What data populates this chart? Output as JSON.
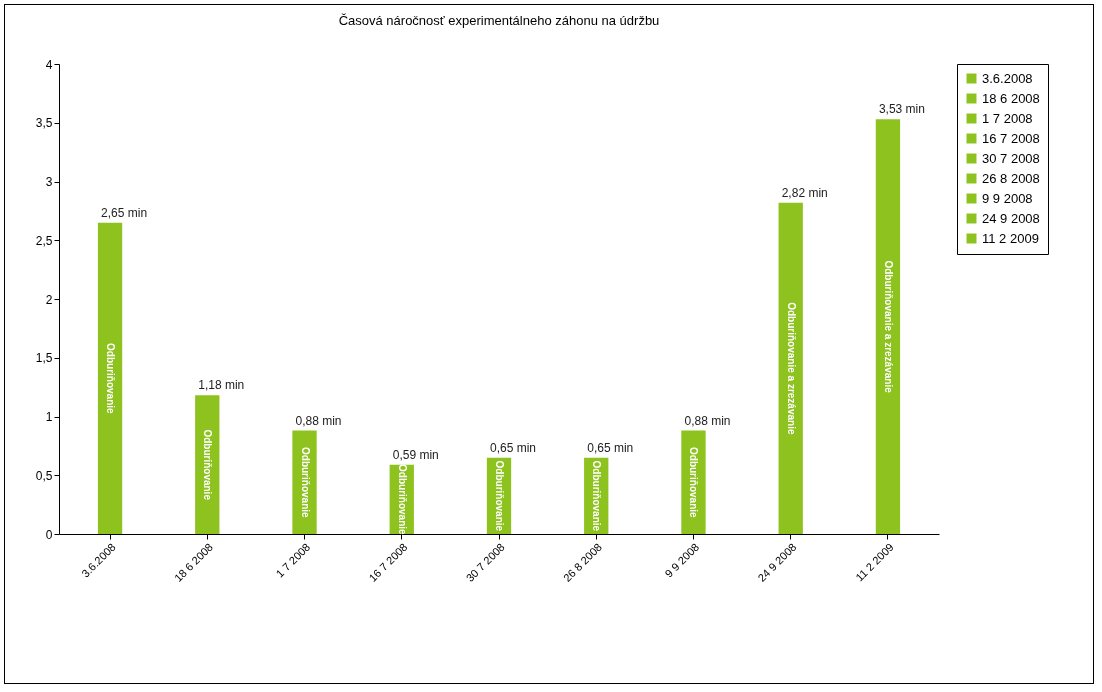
{
  "chart_data": {
    "type": "bar",
    "title": "Časová náročnosť experimentálneho záhonu na údržbu",
    "categories": [
      "3.6.2008",
      "18 6 2008",
      "1 7 2008",
      "16 7 2008",
      "30 7 2008",
      "26 8 2008",
      "9 9 2008",
      "24 9 2008",
      "11 2 2009"
    ],
    "stacked": true,
    "series": [
      {
        "name": "3.6.2008",
        "color": "#8dc21f",
        "values": [
          2.65,
          null,
          null,
          null,
          null,
          null,
          null,
          null,
          null
        ],
        "value_labels": [
          "2,65 min",
          null,
          null,
          null,
          null,
          null,
          null,
          null,
          null
        ]
      },
      {
        "name": "18 6 2008",
        "color": "#8dc21f",
        "values": [
          null,
          1.18,
          null,
          null,
          null,
          null,
          null,
          null,
          null
        ],
        "value_labels": [
          null,
          "1,18 min",
          null,
          null,
          null,
          null,
          null,
          null,
          null
        ]
      },
      {
        "name": "1 7 2008",
        "color": "#8dc21f",
        "values": [
          null,
          null,
          0.88,
          null,
          null,
          null,
          null,
          null,
          null
        ],
        "value_labels": [
          null,
          null,
          "0,88 min",
          null,
          null,
          null,
          null,
          null,
          null
        ]
      },
      {
        "name": "16 7 2008",
        "color": "#8dc21f",
        "values": [
          null,
          null,
          null,
          0.59,
          null,
          null,
          null,
          null,
          null
        ],
        "value_labels": [
          null,
          null,
          null,
          "0,59 min",
          null,
          null,
          null,
          null,
          null
        ]
      },
      {
        "name": "30 7 2008",
        "color": "#8dc21f",
        "values": [
          null,
          null,
          null,
          null,
          0.65,
          null,
          null,
          null,
          null
        ],
        "value_labels": [
          null,
          null,
          null,
          null,
          "0,65 min",
          null,
          null,
          null,
          null
        ]
      },
      {
        "name": "26 8 2008",
        "color": "#8dc21f",
        "values": [
          null,
          null,
          null,
          null,
          null,
          0.65,
          null,
          null,
          null
        ],
        "value_labels": [
          null,
          null,
          null,
          null,
          null,
          "0,65 min",
          null,
          null,
          null
        ]
      },
      {
        "name": "9 9 2008",
        "color": "#8dc21f",
        "values": [
          null,
          null,
          null,
          null,
          null,
          null,
          0.88,
          null,
          null
        ],
        "value_labels": [
          null,
          null,
          null,
          null,
          null,
          null,
          "0,88 min",
          null,
          null
        ]
      },
      {
        "name": "24 9 2008",
        "color": "#8dc21f",
        "values": [
          null,
          null,
          null,
          null,
          null,
          null,
          null,
          2.82,
          null
        ],
        "value_labels": [
          null,
          null,
          null,
          null,
          null,
          null,
          null,
          "2,82 min",
          null
        ]
      },
      {
        "name": "11 2 2009",
        "color": "#8dc21f",
        "values": [
          null,
          null,
          null,
          null,
          null,
          null,
          null,
          null,
          3.53
        ],
        "value_labels": [
          null,
          null,
          null,
          null,
          null,
          null,
          null,
          null,
          "3,53 min"
        ]
      }
    ],
    "ylim": [
      0,
      4
    ],
    "yticks": [
      0,
      {
        "value": 0.5,
        "label": "0,5"
      },
      1,
      {
        "value": 1.5,
        "label": "1,5"
      },
      2,
      {
        "value": 2.5,
        "label": "2,5"
      },
      3,
      {
        "value": 3.5,
        "label": "3,5"
      },
      4
    ],
    "annotations": [
      "Odburiňovanie",
      "Odburiňovanie",
      "Odburiňovanie",
      "Odburiňovanie",
      "Odburiňovanie",
      "Odburiňovanie",
      "Odburiňovanie",
      "Odburiňovanie a zrezávanie",
      "Odburiňovanie a zrezávanie"
    ],
    "legend": "right",
    "grid": false
  }
}
